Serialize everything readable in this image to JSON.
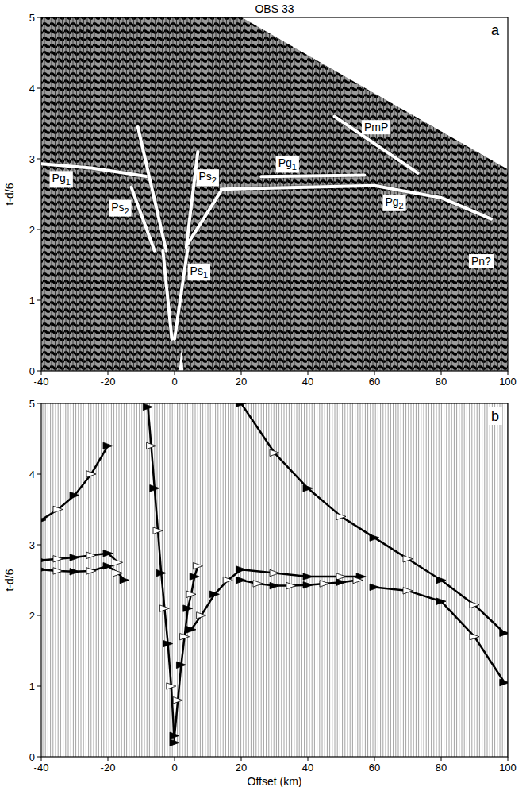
{
  "chart_data": [
    {
      "type": "line",
      "title": "OBS 33",
      "panel_label": "a",
      "y_label": "t-d/6",
      "xlim": [
        -40,
        100
      ],
      "ylim": [
        0,
        5
      ],
      "xticks": [
        -40,
        -20,
        0,
        20,
        40,
        60,
        80,
        100
      ],
      "yticks": [
        0,
        1,
        2,
        3,
        4,
        5
      ],
      "color": "#ffffff",
      "series": [
        {
          "name": "Pg1",
          "x": [
            -40,
            -25,
            -8
          ],
          "values": [
            2.93,
            2.87,
            2.75
          ]
        },
        {
          "name": "Ps2",
          "x": [
            -13,
            -6,
            -5,
            -11,
            -2.5
          ],
          "values": [
            2.6,
            1.7,
            null,
            3.45,
            1.7
          ]
        },
        {
          "name": "Ps1",
          "x": [
            -3.5,
            -0.8,
            -0.4,
            0,
            4
          ],
          "values": [
            1.7,
            0.45,
            null,
            0.45,
            1.75
          ]
        },
        {
          "name": "Ps2",
          "x": [
            3.5,
            7,
            7.5,
            4,
            14
          ],
          "values": [
            1.75,
            3.1,
            null,
            1.8,
            2.55
          ]
        },
        {
          "name": "Pg1",
          "x": [
            26,
            57
          ],
          "values": [
            2.75,
            2.77
          ]
        },
        {
          "name": "Pg2",
          "x": [
            14,
            60,
            80,
            95
          ],
          "values": [
            2.57,
            2.62,
            2.45,
            2.15
          ]
        },
        {
          "name": "PmP",
          "x": [
            48,
            73
          ],
          "values": [
            3.6,
            2.8
          ]
        }
      ],
      "annotations": [
        {
          "text": "Pn?",
          "x": 92,
          "y": 1.55
        }
      ]
    },
    {
      "type": "line",
      "panel_label": "b",
      "y_label": "t-d/6",
      "x_label": "Offset (km)",
      "xlim": [
        -40,
        100
      ],
      "ylim": [
        0,
        5
      ],
      "xticks": [
        -40,
        -20,
        0,
        20,
        40,
        60,
        80,
        100
      ],
      "yticks": [
        0,
        1,
        2,
        3,
        4,
        5
      ],
      "color": "#000000",
      "marker": "triangle",
      "series": [
        {
          "x": [
            -40,
            -35,
            -30,
            -25,
            -20
          ],
          "values": [
            3.35,
            3.5,
            3.7,
            4.0,
            4.4
          ]
        },
        {
          "x": [
            -40,
            -35,
            -30,
            -25,
            -20,
            -17
          ],
          "values": [
            2.78,
            2.8,
            2.82,
            2.85,
            2.88,
            2.75
          ]
        },
        {
          "x": [
            -40,
            -35,
            -30,
            -25,
            -20,
            -17,
            -15
          ],
          "values": [
            2.65,
            2.63,
            2.62,
            2.63,
            2.7,
            2.6,
            2.5
          ]
        },
        {
          "x": [
            -8,
            -7,
            -6,
            -5,
            -4,
            -3,
            -2,
            -1,
            0
          ],
          "values": [
            4.95,
            4.4,
            3.8,
            3.2,
            2.6,
            2.1,
            1.6,
            1.0,
            0.2
          ]
        },
        {
          "x": [
            0,
            1,
            2,
            3,
            4,
            5,
            6,
            7
          ],
          "values": [
            0.3,
            0.8,
            1.3,
            1.7,
            2.1,
            2.3,
            2.55,
            2.7
          ]
        },
        {
          "x": [
            5,
            8,
            12,
            16,
            20,
            30,
            40,
            50,
            56
          ],
          "values": [
            1.8,
            2.0,
            2.3,
            2.5,
            2.65,
            2.6,
            2.55,
            2.55,
            2.55
          ]
        },
        {
          "x": [
            20,
            25,
            30,
            35,
            40,
            45,
            50,
            55
          ],
          "values": [
            2.5,
            2.45,
            2.42,
            2.42,
            2.43,
            2.45,
            2.47,
            2.5
          ]
        },
        {
          "x": [
            20,
            30,
            40,
            50,
            60,
            70,
            80,
            90,
            99
          ],
          "values": [
            5.0,
            4.3,
            3.8,
            3.4,
            3.1,
            2.8,
            2.5,
            2.15,
            1.75
          ]
        },
        {
          "x": [
            60,
            70,
            80,
            90,
            99
          ],
          "values": [
            2.4,
            2.35,
            2.2,
            1.7,
            1.05
          ]
        }
      ]
    }
  ]
}
